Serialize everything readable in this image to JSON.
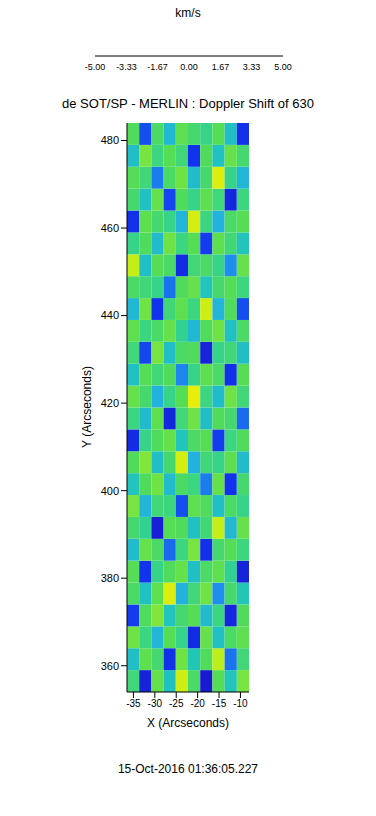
{
  "chart_data": {
    "type": "heatmap",
    "title": "de SOT/SP - MERLIN : Doppler Shift of 630",
    "x_label": "X (Arcseconds)",
    "y_label": "Y (Arcseconds)",
    "annotations": [
      "15-Oct-2016 01:36:05.227"
    ],
    "xlim": [
      -36.5,
      -8
    ],
    "xticks": [
      -35,
      -30,
      -25,
      -20,
      -15,
      -10
    ],
    "ylim": [
      354,
      484
    ],
    "yticks": [
      360,
      380,
      400,
      420,
      440,
      460,
      480
    ],
    "grid": false,
    "cells": {
      "x_edges": [
        -36.5,
        -33.65,
        -30.8,
        -27.95,
        -25.1,
        -22.25,
        -19.4,
        -16.55,
        -13.7,
        -10.85,
        -8
      ],
      "y_edges": [
        354,
        359,
        364,
        369,
        374,
        379,
        384,
        389,
        394,
        399,
        404,
        409,
        414,
        419,
        424,
        429,
        434,
        439,
        444,
        449,
        454,
        459,
        464,
        469,
        474,
        479,
        484
      ],
      "values": [
        [
          -0.6,
          2.9,
          -1.2,
          0.4,
          -2.4,
          -0.8,
          3.1,
          -1.0,
          0.3,
          -1.4
        ],
        [
          0.5,
          -1.1,
          -0.7,
          2.6,
          -1.3,
          0.2,
          -0.9,
          -2.2,
          1.8,
          -0.6
        ],
        [
          -1.3,
          -0.5,
          0.8,
          -1.0,
          -0.4,
          2.7,
          -1.2,
          0.4,
          -0.8,
          -1.1
        ],
        [
          2.4,
          -0.9,
          -1.5,
          0.3,
          -0.7,
          -1.0,
          0.6,
          -0.5,
          2.8,
          -0.9
        ],
        [
          -0.8,
          0.4,
          -1.1,
          -2.6,
          0.9,
          -0.6,
          -1.3,
          1.5,
          -0.7,
          0.2
        ],
        [
          -1.0,
          2.5,
          -0.4,
          -0.9,
          -1.2,
          0.5,
          -0.8,
          -1.1,
          -0.3,
          2.9
        ],
        [
          0.6,
          -1.2,
          -0.8,
          1.9,
          -0.5,
          -1.4,
          2.6,
          -0.7,
          -1.0,
          -0.5
        ],
        [
          -0.7,
          -0.3,
          3.0,
          -1.0,
          -0.9,
          0.4,
          -0.6,
          -2.3,
          0.7,
          -1.2
        ],
        [
          -1.4,
          0.8,
          -0.6,
          -0.5,
          2.2,
          -1.1,
          -0.9,
          0.5,
          -0.8,
          -0.4
        ],
        [
          0.3,
          -0.9,
          -1.3,
          0.6,
          -0.8,
          -0.5,
          1.7,
          -1.2,
          2.5,
          -0.7
        ],
        [
          -0.9,
          -1.5,
          0.5,
          -0.7,
          -2.5,
          0.9,
          -0.6,
          -0.4,
          -1.1,
          0.6
        ],
        [
          2.7,
          -0.4,
          -0.9,
          -1.2,
          0.3,
          -0.8,
          -1.0,
          2.4,
          -0.5,
          -0.9
        ],
        [
          -0.5,
          0.6,
          -1.1,
          2.8,
          -0.6,
          -1.3,
          0.5,
          -0.9,
          -0.7,
          1.9
        ],
        [
          -1.2,
          -0.7,
          0.9,
          -0.4,
          -1.0,
          -2.7,
          -0.5,
          0.6,
          -1.3,
          -0.6
        ],
        [
          0.4,
          -1.0,
          -0.6,
          -0.9,
          1.6,
          -0.4,
          -1.1,
          -0.8,
          2.6,
          -1.0
        ],
        [
          -0.6,
          2.3,
          -1.4,
          0.5,
          -0.8,
          -0.9,
          2.9,
          -0.4,
          -0.6,
          0.5
        ],
        [
          -1.1,
          -0.5,
          -0.8,
          -1.2,
          -0.3,
          0.7,
          -0.9,
          -1.3,
          0.4,
          -0.8
        ],
        [
          0.7,
          -1.3,
          2.5,
          -0.6,
          -1.1,
          -0.5,
          -2.4,
          0.8,
          -0.9,
          2.2
        ],
        [
          -0.8,
          -0.6,
          -0.4,
          1.8,
          -0.9,
          -1.2,
          0.3,
          -0.7,
          -1.0,
          -0.5
        ],
        [
          -2.3,
          0.5,
          -1.0,
          -0.8,
          2.7,
          -0.6,
          -0.8,
          -0.4,
          1.5,
          -1.2
        ],
        [
          -0.4,
          -0.9,
          0.6,
          -1.3,
          -0.5,
          -1.0,
          2.4,
          -1.1,
          -0.6,
          0.3
        ],
        [
          2.6,
          -1.1,
          -0.7,
          -0.4,
          0.8,
          -2.5,
          -0.5,
          0.9,
          -0.8,
          -1.0
        ],
        [
          -0.7,
          0.4,
          -1.2,
          2.3,
          -0.9,
          -0.4,
          -1.1,
          -0.6,
          2.8,
          -0.5
        ],
        [
          -1.0,
          -0.6,
          1.7,
          -0.8,
          -1.3,
          0.6,
          -0.7,
          -2.6,
          -0.4,
          0.8
        ],
        [
          0.5,
          -1.4,
          -0.5,
          -1.0,
          -0.6,
          2.5,
          -0.9,
          0.4,
          -1.2,
          -0.7
        ],
        [
          -0.9,
          2.2,
          -0.8,
          0.7,
          -1.1,
          -0.7,
          -0.4,
          -1.0,
          0.5,
          2.6
        ]
      ]
    },
    "colorbar": {
      "label": "km/s",
      "range": [
        -5,
        5
      ],
      "ticks": [
        {
          "value": -5,
          "label": "-5.00"
        },
        -3.33,
        -1.67,
        {
          "value": 0,
          "label": "0.00"
        },
        1.67,
        3.33,
        {
          "value": 5,
          "label": "5.00"
        }
      ]
    }
  }
}
